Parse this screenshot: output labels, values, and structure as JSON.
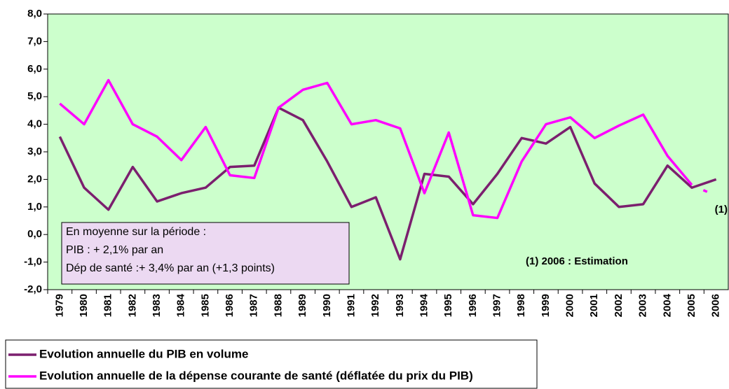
{
  "chart_data": {
    "type": "line",
    "categories": [
      "1979",
      "1980",
      "1981",
      "1982",
      "1983",
      "1984",
      "1985",
      "1986",
      "1987",
      "1988",
      "1989",
      "1990",
      "1991",
      "1992",
      "1993",
      "1994",
      "1995",
      "1996",
      "1997",
      "1998",
      "1999",
      "2000",
      "2001",
      "2002",
      "2003",
      "2004",
      "2005",
      "2006"
    ],
    "series": [
      {
        "name": "Evolution annuelle du PIB en volume",
        "color": "#7b1f6e",
        "values": [
          3.55,
          1.7,
          0.9,
          2.45,
          1.2,
          1.5,
          1.7,
          2.45,
          2.5,
          4.6,
          4.15,
          2.65,
          1.0,
          1.35,
          -0.9,
          2.2,
          2.1,
          1.1,
          2.2,
          3.5,
          3.3,
          3.9,
          1.85,
          1.0,
          1.1,
          2.5,
          1.7,
          2.0
        ]
      },
      {
        "name": "Evolution annuelle de la dépense courante de santé (déflatée du prix du PIB)",
        "color": "#ff00ff",
        "dash_last": true,
        "values": [
          4.75,
          4.0,
          5.6,
          4.0,
          3.55,
          2.7,
          3.9,
          2.15,
          2.05,
          4.6,
          5.25,
          5.5,
          4.0,
          4.15,
          3.85,
          1.5,
          3.7,
          0.7,
          0.6,
          2.65,
          4.0,
          4.25,
          3.5,
          3.95,
          4.35,
          2.85,
          1.8,
          1.4
        ]
      }
    ],
    "ylim": [
      -2,
      8
    ],
    "yticks": [
      {
        "value": -2,
        "label": "-2,0"
      },
      {
        "value": -1,
        "label": "-1,0"
      },
      {
        "value": 0,
        "label": "0,0"
      },
      {
        "value": 1,
        "label": "1,0"
      },
      {
        "value": 2,
        "label": "2,0"
      },
      {
        "value": 3,
        "label": "3,0"
      },
      {
        "value": 4,
        "label": "4,0"
      },
      {
        "value": 5,
        "label": "5,0"
      },
      {
        "value": 6,
        "label": "6,0"
      },
      {
        "value": 7,
        "label": "7,0"
      },
      {
        "value": 8,
        "label": "8,0"
      }
    ],
    "background": "#ccffcc",
    "annotations": {
      "note_box": [
        "En moyenne sur la période :",
        "PIB : + 2,1% par an",
        "Dép de santé :+ 3,4% par an (+1,3 points)"
      ],
      "marker": "(1)",
      "footnote": "(1) 2006 : Estimation"
    }
  }
}
